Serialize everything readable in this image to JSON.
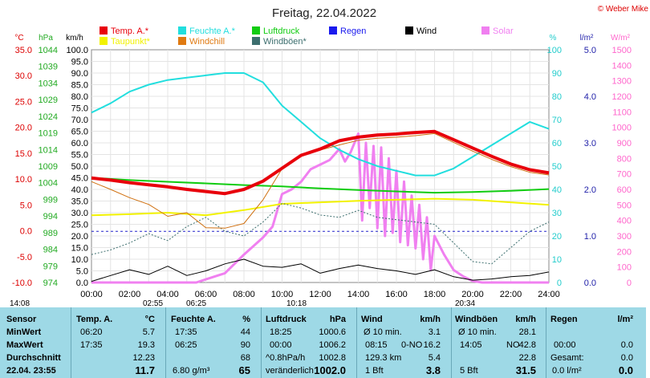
{
  "chart_data": {
    "type": "line",
    "title": "Freitag, 22.04.2022",
    "copyright": "© Weber Mike",
    "x_ticks": [
      "00:00",
      "02:00",
      "04:00",
      "06:00",
      "08:00",
      "10:00",
      "12:00",
      "14:00",
      "16:00",
      "18:00",
      "20:00",
      "22:00",
      "24:00"
    ],
    "legend": [
      {
        "name": "Temp. A.*",
        "color": "#e8000b"
      },
      {
        "name": "Feuchte A.*",
        "color": "#22dede"
      },
      {
        "name": "Luftdruck",
        "color": "#11cc11"
      },
      {
        "name": "Regen",
        "color": "#1a1aee"
      },
      {
        "name": "Wind",
        "color": "#000000"
      },
      {
        "name": "Solar",
        "color": "#f07ff0"
      },
      {
        "name": "Taupunkt*",
        "color": "#f2f200"
      },
      {
        "name": "Windchill",
        "color": "#e07a12"
      },
      {
        "name": "Windböen*",
        "color": "#3c6e6e"
      }
    ],
    "axes": {
      "temp": {
        "unit": "°C",
        "ticks": [
          "35.0",
          "30.0",
          "25.0",
          "20.0",
          "15.0",
          "10.0",
          "5.0",
          "0.0",
          "-5.0",
          "-10.0"
        ],
        "color": "#dd0000",
        "ylim": [
          -10,
          35
        ]
      },
      "pressure": {
        "unit": "hPa",
        "ticks": [
          "1044",
          "1039",
          "1034",
          "1029",
          "1024",
          "1019",
          "1014",
          "1009",
          "1004",
          "999",
          "994",
          "989",
          "984",
          "979",
          "974"
        ],
        "color": "#22aa22",
        "ylim": [
          974,
          1044
        ]
      },
      "wind": {
        "unit": "km/h",
        "ticks": [
          "100.0",
          "95.0",
          "90.0",
          "85.0",
          "80.0",
          "75.0",
          "70.0",
          "65.0",
          "60.0",
          "55.0",
          "50.0",
          "45.0",
          "40.0",
          "35.0",
          "30.0",
          "25.0",
          "20.0",
          "15.0",
          "10.0",
          "5.0",
          "0.0"
        ],
        "color": "#000000",
        "ylim": [
          0,
          100
        ]
      },
      "humidity": {
        "unit": "%",
        "ticks": [
          "100",
          "90",
          "80",
          "70",
          "60",
          "50",
          "40",
          "30",
          "20",
          "10",
          "0"
        ],
        "color": "#22cccc",
        "ylim": [
          0,
          100
        ]
      },
      "rain": {
        "unit": "l/m²",
        "ticks": [
          "5.0",
          "4.0",
          "3.0",
          "2.0",
          "1.0",
          "0.0"
        ],
        "color": "#2222aa",
        "ylim": [
          0,
          5
        ]
      },
      "solar": {
        "unit": "W/m²",
        "ticks": [
          "1500",
          "1400",
          "1300",
          "1200",
          "1100",
          "1000",
          "900",
          "800",
          "700",
          "600",
          "500",
          "400",
          "300",
          "200",
          "100",
          "0"
        ],
        "color": "#ff66cc",
        "ylim": [
          0,
          1500
        ]
      }
    },
    "time_marks": [
      "14:08",
      "02:55",
      "06:25",
      "10:18",
      "20:34"
    ],
    "series": [
      {
        "name": "Temp. A.*",
        "axis": "temp",
        "x": [
          0,
          1,
          2,
          3,
          4,
          5,
          6,
          7,
          8,
          9,
          10,
          11,
          12,
          13,
          14,
          15,
          16,
          17,
          18,
          19,
          20,
          21,
          22,
          23,
          24
        ],
        "values": [
          10.2,
          9.8,
          9.3,
          8.9,
          8.5,
          8.0,
          7.6,
          7.2,
          8.0,
          9.6,
          12.1,
          14.6,
          15.8,
          17.4,
          18.1,
          18.5,
          18.7,
          19.0,
          19.2,
          17.6,
          16.0,
          14.4,
          12.9,
          11.8,
          11.2
        ]
      },
      {
        "name": "Feuchte A.*",
        "axis": "humidity",
        "x": [
          0,
          1,
          2,
          3,
          4,
          5,
          6,
          7,
          8,
          9,
          10,
          11,
          12,
          13,
          14,
          15,
          16,
          17,
          18,
          19,
          20,
          21,
          22,
          23,
          24
        ],
        "values": [
          73,
          77,
          82,
          85,
          87,
          88,
          89,
          90,
          90,
          86,
          76,
          69,
          62,
          57,
          53,
          50,
          48,
          46,
          46,
          49,
          54,
          59,
          64,
          69,
          66
        ]
      },
      {
        "name": "Luftdruck",
        "axis": "pressure",
        "x": [
          0,
          2,
          4,
          6,
          8,
          10,
          12,
          14,
          16,
          18,
          20,
          22,
          24
        ],
        "values": [
          1005.5,
          1004.8,
          1004.3,
          1003.8,
          1003.3,
          1002.9,
          1002.3,
          1001.8,
          1001.4,
          1001.0,
          1001.2,
          1001.6,
          1002.1
        ]
      },
      {
        "name": "Taupunkt*",
        "axis": "temp",
        "x": [
          0,
          2,
          4,
          6,
          8,
          10,
          12,
          14,
          16,
          18,
          20,
          22,
          24
        ],
        "values": [
          3.0,
          3.2,
          3.5,
          3.0,
          4.0,
          5.2,
          5.5,
          5.8,
          6.0,
          6.2,
          6.0,
          5.5,
          5.0
        ]
      },
      {
        "name": "Windchill",
        "axis": "temp",
        "x": [
          0,
          1,
          2,
          3,
          4,
          5,
          6,
          7,
          8,
          9,
          10,
          11,
          12,
          13,
          14,
          15,
          16,
          17,
          18,
          19,
          20,
          21,
          22,
          23,
          24
        ],
        "values": [
          9.5,
          8.0,
          6.4,
          5.1,
          2.8,
          3.5,
          0.6,
          0.5,
          1.4,
          6.0,
          12.0,
          14.7,
          15.6,
          16.6,
          17.5,
          17.9,
          18.1,
          18.4,
          18.8,
          17.1,
          15.4,
          13.8,
          12.4,
          11.3,
          10.8
        ]
      },
      {
        "name": "Solar",
        "axis": "solar",
        "x": [
          0,
          5.5,
          6,
          7,
          8,
          9,
          9.5,
          10,
          10.5,
          11,
          11.5,
          12,
          12.5,
          13,
          13.3,
          13.6,
          14,
          14.2,
          14.4,
          14.6,
          14.8,
          15,
          15.2,
          15.4,
          15.6,
          15.8,
          16,
          16.2,
          16.4,
          16.6,
          16.8,
          17,
          17.2,
          17.4,
          17.6,
          17.8,
          18,
          18.5,
          19,
          19.5,
          20,
          20.5,
          24
        ],
        "values": [
          0,
          0,
          20,
          60,
          180,
          290,
          360,
          570,
          600,
          650,
          730,
          760,
          790,
          860,
          780,
          840,
          960,
          400,
          900,
          480,
          880,
          350,
          870,
          300,
          800,
          320,
          720,
          260,
          650,
          240,
          560,
          220,
          500,
          150,
          420,
          80,
          300,
          180,
          80,
          40,
          10,
          0,
          0
        ]
      },
      {
        "name": "Wind",
        "axis": "wind",
        "x": [
          0,
          1,
          2,
          3,
          4,
          5,
          6,
          7,
          8,
          9,
          10,
          11,
          12,
          13,
          14,
          15,
          16,
          17,
          18,
          19,
          20,
          21,
          22,
          23,
          24
        ],
        "values": [
          0.5,
          3.0,
          5.5,
          3.5,
          7.0,
          3.0,
          5.0,
          8.0,
          10.0,
          7.0,
          6.5,
          8.0,
          4.0,
          6.0,
          7.5,
          6.0,
          5.0,
          3.5,
          5.5,
          2.5,
          1.0,
          1.5,
          2.5,
          3.0,
          4.5
        ]
      },
      {
        "name": "Windböen*",
        "axis": "wind",
        "x": [
          0,
          1,
          2,
          3,
          4,
          5,
          6,
          7,
          8,
          9,
          10,
          11,
          12,
          13,
          14,
          15,
          16,
          17,
          18,
          19,
          20,
          21,
          22,
          23,
          24
        ],
        "values": [
          12,
          14,
          17,
          21,
          18,
          24,
          28,
          22,
          20,
          26,
          34,
          32,
          29,
          28,
          31,
          28,
          27,
          26,
          25,
          17,
          9,
          8,
          15,
          22,
          26
        ]
      }
    ],
    "rain_baseline": 1.1
  },
  "panel": {
    "row_labels": {
      "sensor": "Sensor",
      "min": "MinWert",
      "max": "MaxWert",
      "avg": "Durchschnitt",
      "current": "22.04. 23:55"
    },
    "temp": {
      "header": "Temp. A.",
      "unit": "°C",
      "min_time": "06:20",
      "min_val": "5.7",
      "max_time": "17:35",
      "max_val": "19.3",
      "avg": "12.23",
      "current": "11.7"
    },
    "humidity": {
      "header": "Feuchte A.",
      "unit": "%",
      "min_time": "17:35",
      "min_val": "44",
      "max_time": "06:25",
      "max_val": "90",
      "avg": "68",
      "current_abs": "6.80 g/m³",
      "current": "65"
    },
    "pressure": {
      "header": "Luftdruck",
      "unit": "hPa",
      "min_time": "18:25",
      "min_val": "1000.6",
      "max_time": "00:00",
      "max_val": "1006.2",
      "trend_label": "^0.8hPa/h",
      "avg": "1002.8",
      "status": "veränderlich",
      "current": "1002.0"
    },
    "wind": {
      "header": "Wind",
      "unit": "km/h",
      "r1_label": "Ø 10 min.",
      "r1_val": "3.1",
      "r2_time": "08:15",
      "r2_dir": "0-NO",
      "r2_val": "16.2",
      "r3_label": "129.3 km",
      "r3_val": "5.4",
      "r4_label": "1 Bft",
      "current": "3.8"
    },
    "gust": {
      "header": "Windböen",
      "unit": "km/h",
      "r1_label": "Ø 10 min.",
      "r1_val": "28.1",
      "r2_time": "14:05",
      "r2_dir": "NO",
      "r2_val": "42.8",
      "r3_val": "22.8",
      "r4_label": "5 Bft",
      "current": "31.5"
    },
    "rain": {
      "header": "Regen",
      "unit": "l/m²",
      "r2_time": "00:00",
      "r2_val": "0.0",
      "r3_label": "Gesamt:",
      "r3_val": "0.0",
      "r4_label": "0.0 l/m²",
      "current": "0.0"
    }
  }
}
